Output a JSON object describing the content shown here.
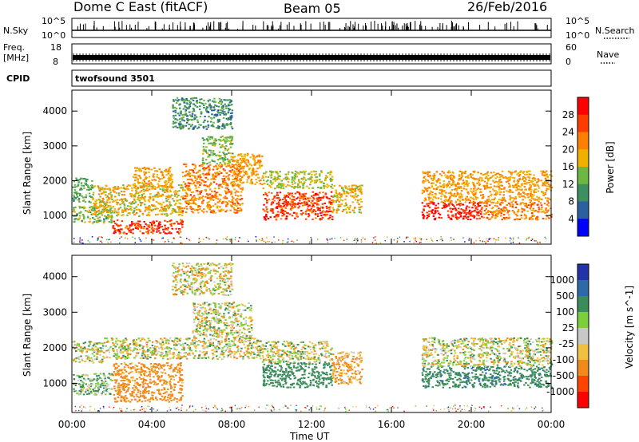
{
  "header": {
    "title": "Dome C East (fitACF)",
    "beam": "Beam 05",
    "date": "26/Feb/2016"
  },
  "strips": {
    "nsky_label": "N.Sky",
    "nsky_ticks": [
      "10^5",
      "10^0"
    ],
    "nsearch_label": "N.Search",
    "freq_label": "Freq.",
    "freq_unit": "[MHz]",
    "freq_ticks": [
      "18",
      "8"
    ],
    "nave_ticks": [
      "60",
      "0"
    ],
    "nave_label": "Nave",
    "cpid_label": "CPID",
    "cpid_value": "twofsound 3501"
  },
  "colorbars": {
    "power": {
      "label": "Power [dB]",
      "ticks": [
        "28",
        "24",
        "20",
        "16",
        "12",
        "8",
        "4"
      ],
      "colors": [
        "#ff0000",
        "#ff3c00",
        "#ff8000",
        "#f0b000",
        "#6cb840",
        "#3c9060",
        "#2c5f9e",
        "#0000ff"
      ]
    },
    "velocity": {
      "label": "Velocity [m s^-1]",
      "ticks": [
        "1000",
        "500",
        "100",
        "25",
        "-25",
        "-100",
        "-500",
        "-1000"
      ],
      "colors": [
        "#2233aa",
        "#2e6aa8",
        "#3a8c5a",
        "#7ccf3a",
        "#c8c8c8",
        "#f0c040",
        "#f08a1a",
        "#ff4400",
        "#ff0000"
      ]
    }
  },
  "axes": {
    "ylabel": "Slant Range [km]",
    "xlabel": "Time UT",
    "yticks": [
      "1000",
      "2000",
      "3000",
      "4000"
    ],
    "xticks": [
      "00:00",
      "04:00",
      "08:00",
      "12:00",
      "16:00",
      "20:00",
      "00:00"
    ]
  },
  "chart_data": [
    {
      "type": "heatmap",
      "panel": "power",
      "x": "time UT (hours)",
      "y": "slant range (km)",
      "xlim": [
        0,
        24
      ],
      "ylim": [
        180,
        4600
      ],
      "colorbar_range_dB": [
        0,
        32
      ],
      "cells": [
        {
          "t0": 0.0,
          "t1": 1.0,
          "r0": 1400,
          "r1": 2100,
          "value": 12
        },
        {
          "t0": 0.0,
          "t1": 2.0,
          "r0": 800,
          "r1": 1300,
          "value": 14
        },
        {
          "t0": 1.0,
          "t1": 5.5,
          "r0": 1000,
          "r1": 1900,
          "value": 18
        },
        {
          "t0": 2.0,
          "t1": 5.5,
          "r0": 500,
          "r1": 900,
          "value": 26
        },
        {
          "t0": 3.0,
          "t1": 5.0,
          "r0": 1800,
          "r1": 2400,
          "value": 20
        },
        {
          "t0": 5.5,
          "t1": 8.5,
          "r0": 1100,
          "r1": 2500,
          "value": 22
        },
        {
          "t0": 6.5,
          "t1": 8.0,
          "r0": 2500,
          "r1": 3300,
          "value": 14
        },
        {
          "t0": 5.0,
          "t1": 8.0,
          "r0": 3500,
          "r1": 4400,
          "value": 10
        },
        {
          "t0": 8.0,
          "t1": 9.5,
          "r0": 1900,
          "r1": 2800,
          "value": 20
        },
        {
          "t0": 9.5,
          "t1": 13.0,
          "r0": 900,
          "r1": 1700,
          "value": 26
        },
        {
          "t0": 9.5,
          "t1": 13.0,
          "r0": 1800,
          "r1": 2300,
          "value": 16
        },
        {
          "t0": 13.0,
          "t1": 14.5,
          "r0": 1100,
          "r1": 1900,
          "value": 18
        },
        {
          "t0": 17.5,
          "t1": 20.5,
          "r0": 900,
          "r1": 1400,
          "value": 28
        },
        {
          "t0": 17.5,
          "t1": 24.0,
          "r0": 1400,
          "r1": 2300,
          "value": 20
        },
        {
          "t0": 20.5,
          "t1": 24.0,
          "r0": 900,
          "r1": 1400,
          "value": 22
        }
      ]
    },
    {
      "type": "heatmap",
      "panel": "velocity",
      "x": "time UT (hours)",
      "y": "slant range (km)",
      "xlim": [
        0,
        24
      ],
      "ylim": [
        180,
        4600
      ],
      "colorbar_range_ms": [
        -1000,
        1000
      ],
      "cells": [
        {
          "t0": 0.0,
          "t1": 1.5,
          "r0": 1600,
          "r1": 2200,
          "value": 0
        },
        {
          "t0": 0.0,
          "t1": 2.0,
          "r0": 700,
          "r1": 1300,
          "value": 100
        },
        {
          "t0": 2.0,
          "t1": 5.5,
          "r0": 500,
          "r1": 1000,
          "value": -300
        },
        {
          "t0": 2.0,
          "t1": 5.5,
          "r0": 1000,
          "r1": 1600,
          "value": -200
        },
        {
          "t0": 1.5,
          "t1": 9.5,
          "r0": 1700,
          "r1": 2300,
          "value": 0
        },
        {
          "t0": 6.0,
          "t1": 9.0,
          "r0": 2300,
          "r1": 3300,
          "value": 0
        },
        {
          "t0": 5.0,
          "t1": 8.0,
          "r0": 3500,
          "r1": 4400,
          "value": -30
        },
        {
          "t0": 9.5,
          "t1": 13.0,
          "r0": 900,
          "r1": 1600,
          "value": 300
        },
        {
          "t0": 9.5,
          "t1": 13.0,
          "r0": 1600,
          "r1": 2200,
          "value": 0
        },
        {
          "t0": 13.0,
          "t1": 14.5,
          "r0": 1000,
          "r1": 1900,
          "value": -150
        },
        {
          "t0": 17.5,
          "t1": 24.0,
          "r0": 900,
          "r1": 1500,
          "value": 400
        },
        {
          "t0": 17.5,
          "t1": 24.0,
          "r0": 1500,
          "r1": 2300,
          "value": 0
        }
      ]
    }
  ]
}
